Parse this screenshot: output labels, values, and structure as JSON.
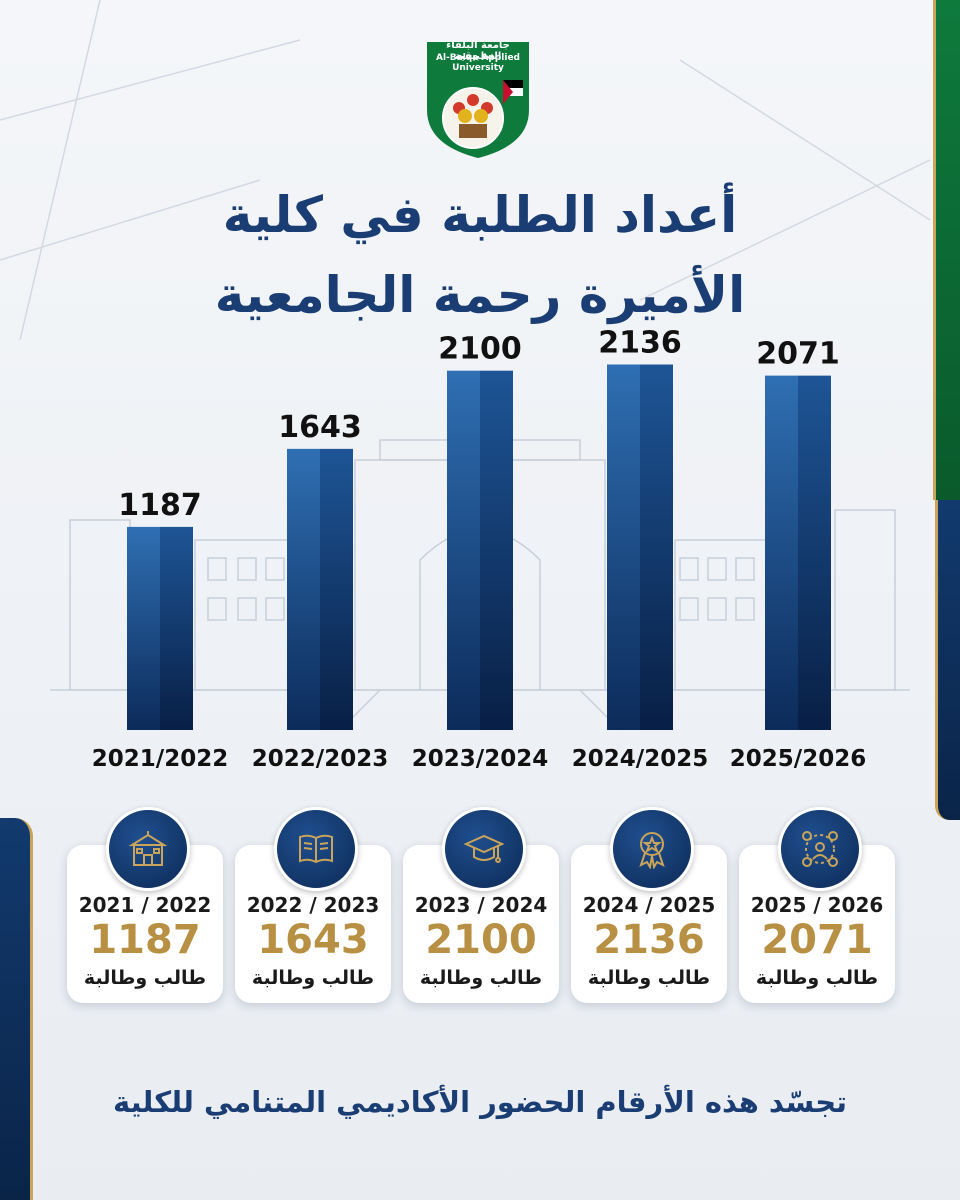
{
  "logo": {
    "name_ar": "جامعة البلقاء التطبيقية",
    "name_en": "Al-Balqa Applied University"
  },
  "title": {
    "line1": "أعداد الطلبة في كلية",
    "line2": "الأميرة رحمة الجامعية"
  },
  "chart_data": {
    "type": "bar",
    "categories": [
      "2021/2022",
      "2022/2023",
      "2023/2024",
      "2024/2025",
      "2025/2026"
    ],
    "values": [
      1187,
      1643,
      2100,
      2136,
      2071
    ],
    "title": "أعداد الطلبة في كلية الأميرة رحمة الجامعية",
    "xlabel": "",
    "ylabel": "",
    "ylim": [
      0,
      2250
    ],
    "grid": false,
    "legend": "none",
    "bar_color": "#1b4f8f"
  },
  "cards": [
    {
      "year": "2021 / 2022",
      "count": "1187",
      "label": "طالب وطالبة",
      "icon": "school-building-icon"
    },
    {
      "year": "2022 / 2023",
      "count": "1643",
      "label": "طالب وطالبة",
      "icon": "open-book-icon"
    },
    {
      "year": "2023 / 2024",
      "count": "2100",
      "label": "طالب وطالبة",
      "icon": "graduation-cap-icon"
    },
    {
      "year": "2024 / 2025",
      "count": "2136",
      "label": "طالب وطالبة",
      "icon": "award-medal-icon"
    },
    {
      "year": "2025 / 2026",
      "count": "2071",
      "label": "طالب وطالبة",
      "icon": "people-network-icon"
    }
  ],
  "footer": "تجسّد هذه الأرقام الحضور الأكاديمي المتنامي للكلية",
  "colors": {
    "title": "#1a3d73",
    "accent_gold": "#b89043",
    "bar": "#1b4f8f",
    "green": "#0e7a3c"
  }
}
